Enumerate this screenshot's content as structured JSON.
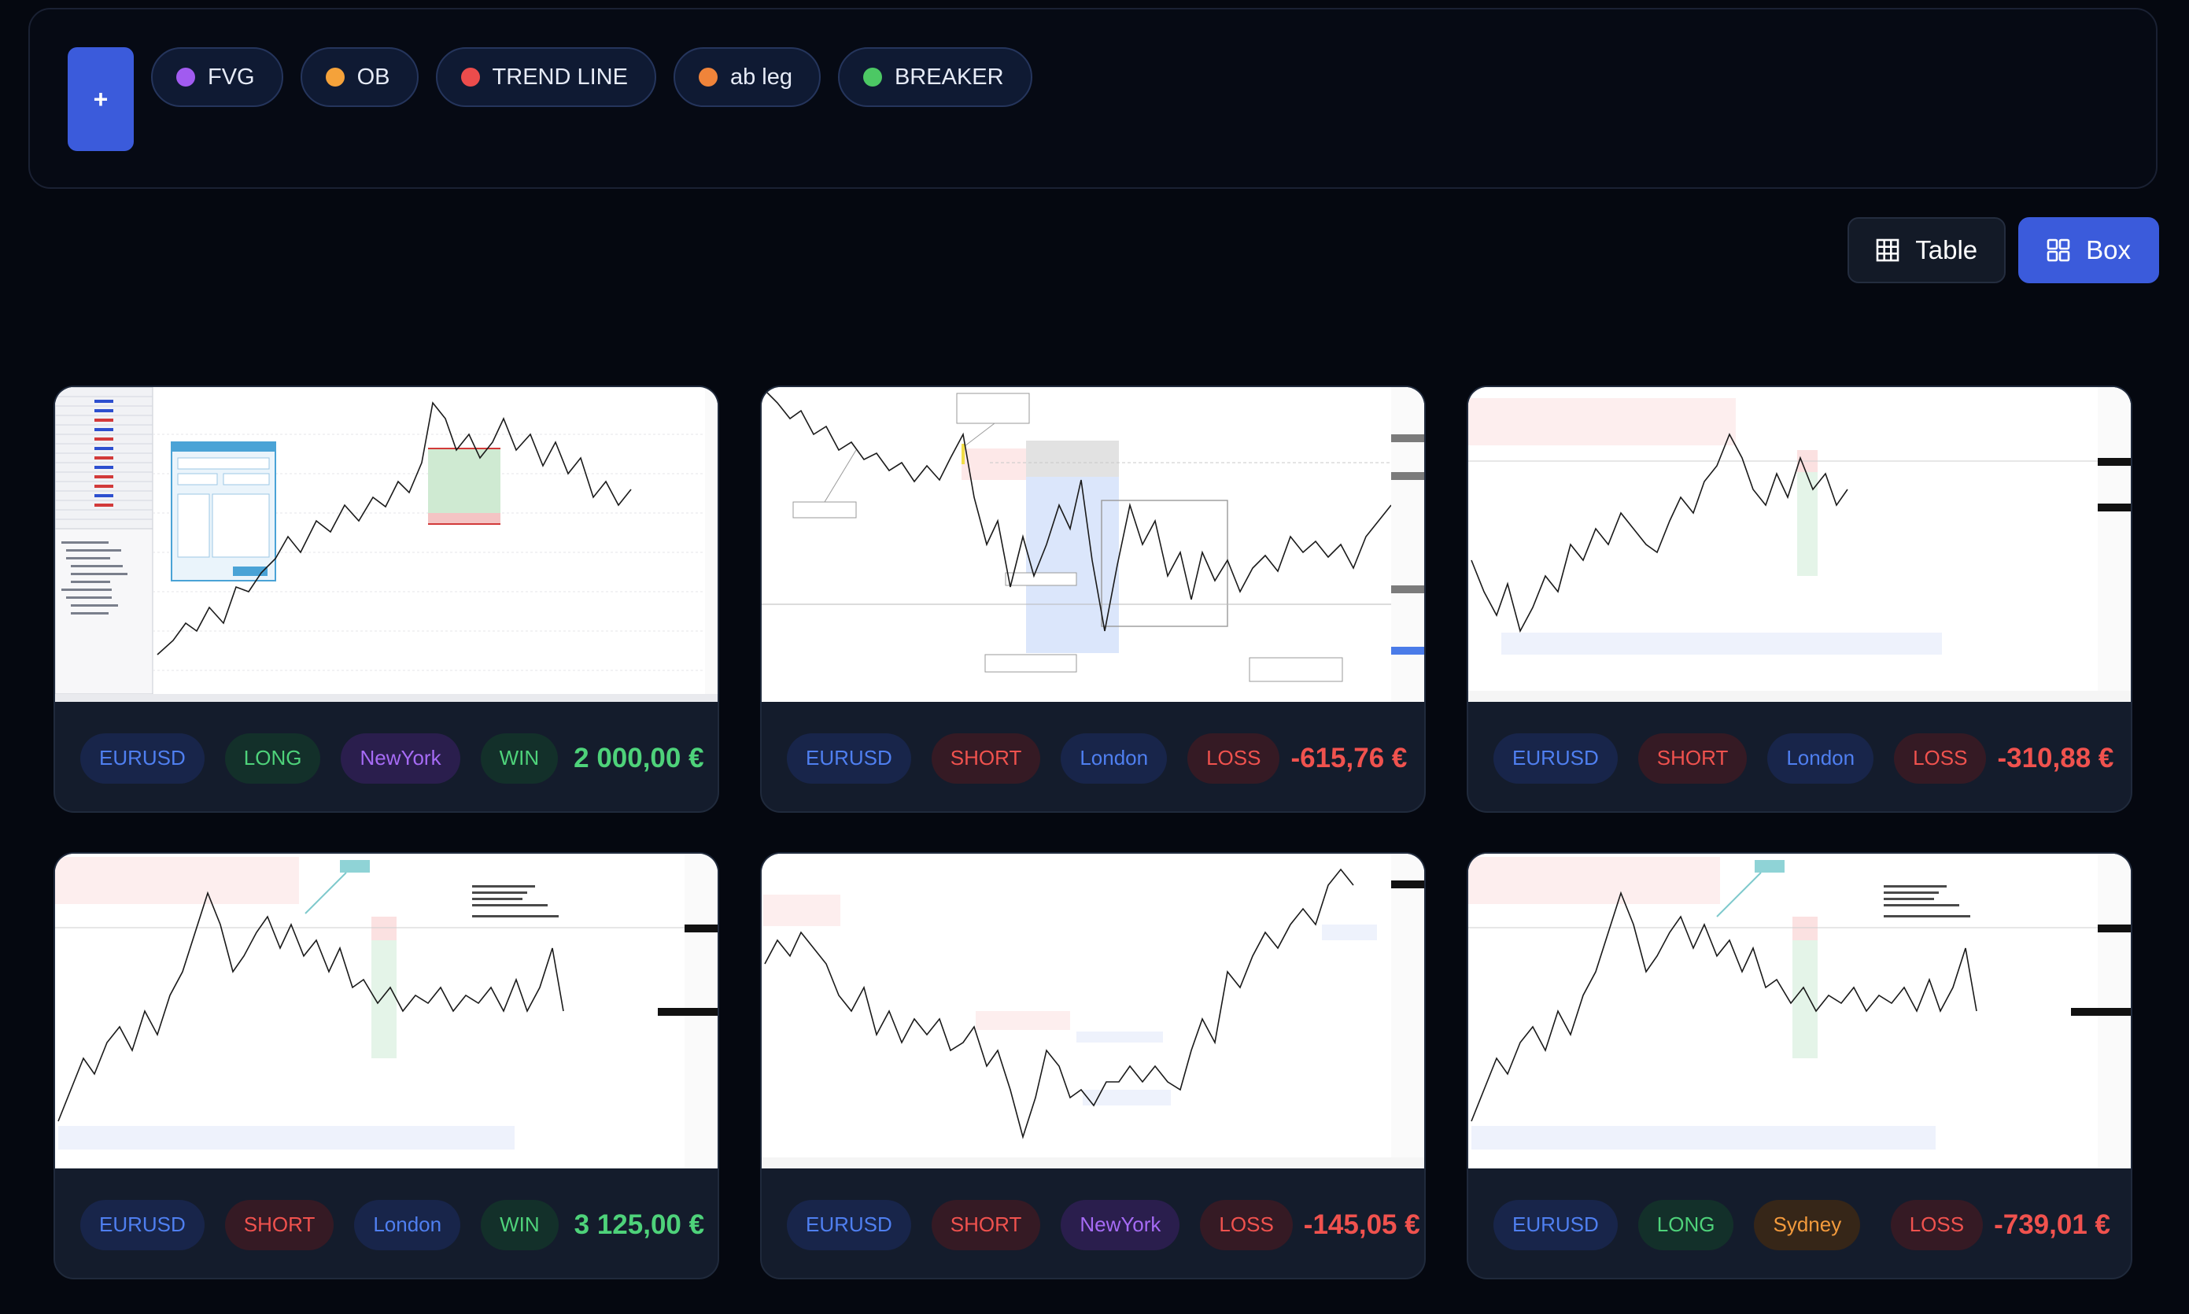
{
  "tagbar": {
    "add_label": "+",
    "tags": [
      {
        "label": "FVG",
        "color": "#a15bf0"
      },
      {
        "label": "OB",
        "color": "#f5a23a"
      },
      {
        "label": "TREND LINE",
        "color": "#ec4c4c"
      },
      {
        "label": "ab leg",
        "color": "#f0843a"
      },
      {
        "label": "BREAKER",
        "color": "#4cc864"
      }
    ]
  },
  "view_toggle": {
    "table_label": "Table",
    "box_label": "Box",
    "active": "Box"
  },
  "trades": [
    {
      "symbol": "EURUSD",
      "direction": "LONG",
      "session": "NewYork",
      "result": "WIN",
      "pnl": "2 000,00 €",
      "chart_style": "mt4"
    },
    {
      "symbol": "EURUSD",
      "direction": "SHORT",
      "session": "London",
      "result": "LOSS",
      "pnl": "-615,76 €",
      "chart_style": "annotated"
    },
    {
      "symbol": "EURUSD",
      "direction": "SHORT",
      "session": "London",
      "result": "LOSS",
      "pnl": "-310,88 €",
      "chart_style": "tradingview"
    },
    {
      "symbol": "EURUSD",
      "direction": "SHORT",
      "session": "London",
      "result": "WIN",
      "pnl": "3 125,00 €",
      "chart_style": "tradingview"
    },
    {
      "symbol": "EURUSD",
      "direction": "SHORT",
      "session": "NewYork",
      "result": "LOSS",
      "pnl": "-145,05 €",
      "chart_style": "tradingview"
    },
    {
      "symbol": "EURUSD",
      "direction": "LONG",
      "session": "Sydney",
      "result": "LOSS",
      "pnl": "-739,01 €",
      "chart_style": "tradingview"
    }
  ]
}
